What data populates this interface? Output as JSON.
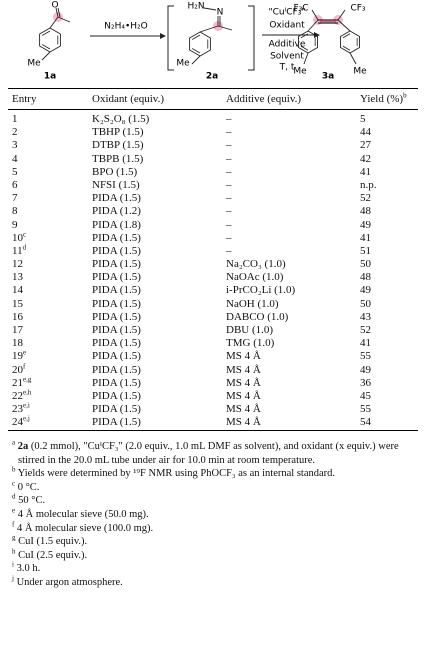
{
  "scheme": {
    "compounds": [
      {
        "label": "1a",
        "atoms": [
          "O",
          "Me"
        ]
      },
      {
        "label": "2a",
        "atoms": [
          "H₂N",
          "N",
          "Me"
        ]
      },
      {
        "label": "3a",
        "atoms": [
          "F₃C",
          "CF₃",
          "Me",
          "Me"
        ]
      }
    ],
    "arrows": [
      {
        "reagents": [
          "N₂H₄•H₂O"
        ]
      },
      {
        "reagents": [
          "\"CuᴵCF₃\"",
          "Oxidant",
          "Additive",
          "Solvent",
          "T, t"
        ]
      }
    ]
  },
  "table": {
    "header": {
      "entry": "Entry",
      "oxidant": "Oxidant (equiv.)",
      "additive": "Additive (equiv.)",
      "yield": "Yield (%)",
      "yield_note": "b"
    },
    "rows": [
      {
        "entry": 1,
        "oxidant": "K₂S₂O₈ (1.5)",
        "additive": "–",
        "yield": 5
      },
      {
        "entry": 2,
        "oxidant": "TBHP (1.5)",
        "additive": "–",
        "yield": 44
      },
      {
        "entry": 3,
        "oxidant": "DTBP (1.5)",
        "additive": "–",
        "yield": 27
      },
      {
        "entry": 4,
        "oxidant": "TBPB (1.5)",
        "additive": "–",
        "yield": 42
      },
      {
        "entry": 5,
        "oxidant": "BPO (1.5)",
        "additive": "–",
        "yield": 41
      },
      {
        "entry": 6,
        "oxidant": "NFSI (1.5)",
        "additive": "–",
        "yield": "n.p."
      },
      {
        "entry": 7,
        "oxidant": "PIDA (1.5)",
        "additive": "–",
        "yield": 52
      },
      {
        "entry": 8,
        "oxidant": "PIDA (1.2)",
        "additive": "–",
        "yield": 48
      },
      {
        "entry": 9,
        "oxidant": "PIDA (1.8)",
        "additive": "–",
        "yield": 49
      },
      {
        "entry": 10,
        "note": "c",
        "oxidant": "PIDA (1.5)",
        "additive": "–",
        "yield": 41
      },
      {
        "entry": 11,
        "note": "d",
        "oxidant": "PIDA (1.5)",
        "additive": "–",
        "yield": 51
      },
      {
        "entry": 12,
        "oxidant": "PIDA (1.5)",
        "additive": "Na₂CO₃ (1.0)",
        "yield": 50
      },
      {
        "entry": 13,
        "oxidant": "PIDA (1.5)",
        "additive": "NaOAc (1.0)",
        "yield": 48
      },
      {
        "entry": 14,
        "oxidant": "PIDA (1.5)",
        "additive": "i-PrCO₂Li (1.0)",
        "yield": 49
      },
      {
        "entry": 15,
        "oxidant": "PIDA (1.5)",
        "additive": "NaOH (1.0)",
        "yield": 50
      },
      {
        "entry": 16,
        "oxidant": "PIDA (1.5)",
        "additive": "DABCO (1.0)",
        "yield": 43
      },
      {
        "entry": 17,
        "oxidant": "PIDA (1.5)",
        "additive": "DBU (1.0)",
        "yield": 52
      },
      {
        "entry": 18,
        "oxidant": "PIDA (1.5)",
        "additive": "TMG (1.0)",
        "yield": 41
      },
      {
        "entry": 19,
        "note": "e",
        "oxidant": "PIDA (1.5)",
        "additive": "MS 4 Å",
        "yield": 55
      },
      {
        "entry": 20,
        "note": "f",
        "oxidant": "PIDA (1.5)",
        "additive": "MS 4 Å",
        "yield": 49
      },
      {
        "entry": 21,
        "note": "e,g",
        "oxidant": "PIDA (1.5)",
        "additive": "MS 4 Å",
        "yield": 36
      },
      {
        "entry": 22,
        "note": "e,h",
        "oxidant": "PIDA (1.5)",
        "additive": "MS 4 Å",
        "yield": 45
      },
      {
        "entry": 23,
        "note": "e,i",
        "oxidant": "PIDA (1.5)",
        "additive": "MS 4 Å",
        "yield": 55
      },
      {
        "entry": 24,
        "note": "e,j",
        "oxidant": "PIDA (1.5)",
        "additive": "MS 4 Å",
        "yield": 54
      }
    ]
  },
  "footnotes": [
    {
      "mark": "a",
      "bold": "2a",
      "text": " (0.2 mmol), \"CuᴵCF₃\" (2.0 equiv., 1.0 mL DMF as solvent), and oxidant (x equiv.) were stirred in the 20.0 mL tube under air for 10.0 min at room temperature."
    },
    {
      "mark": "b",
      "text": "Yields were determined by ¹⁹F NMR using PhOCF₃ as an internal standard."
    },
    {
      "mark": "c",
      "text": "0 °C."
    },
    {
      "mark": "d",
      "text": "50 °C."
    },
    {
      "mark": "e",
      "text": "4 Å molecular sieve (50.0 mg)."
    },
    {
      "mark": "f",
      "text": "4 Å molecular sieve (100.0 mg)."
    },
    {
      "mark": "g",
      "text": "CuI (1.5 equiv.)."
    },
    {
      "mark": "h",
      "text": "CuI (2.5 equiv.)."
    },
    {
      "mark": "i",
      "text": "3.0 h."
    },
    {
      "mark": "j",
      "text": "Under argon atmosphere."
    }
  ]
}
